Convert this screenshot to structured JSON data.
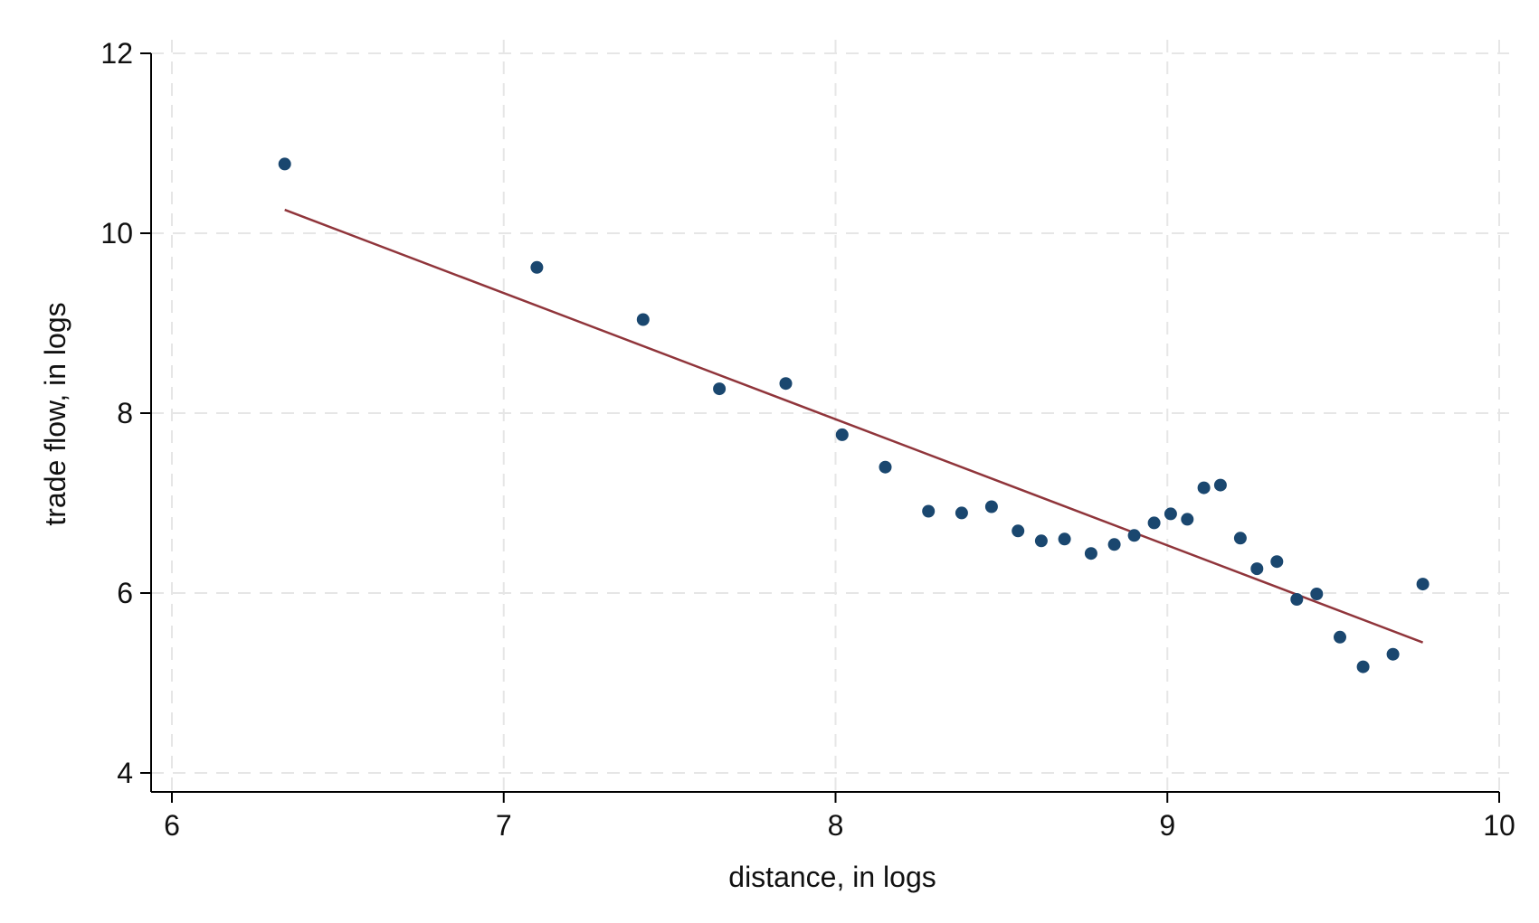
{
  "chart_data": {
    "type": "scatter",
    "title": "",
    "xlabel": "distance, in logs",
    "ylabel": "trade flow, in logs",
    "xlim": [
      6,
      10
    ],
    "ylim": [
      4,
      12
    ],
    "x_ticks": [
      "6",
      "7",
      "8",
      "9",
      "10"
    ],
    "y_ticks": [
      "4",
      "6",
      "8",
      "10",
      "12"
    ],
    "grid": true,
    "legend": "none",
    "colors": {
      "points": "#1a476f",
      "fit_line": "#90353b",
      "grid": "#e6e6e6",
      "axis": "#000000"
    },
    "series": [
      {
        "type": "scatter",
        "x": [
          6.34,
          7.1,
          7.42,
          7.65,
          7.85,
          8.02,
          8.15,
          8.28,
          8.38,
          8.47,
          8.55,
          8.62,
          8.69,
          8.77,
          8.84,
          8.9,
          8.96,
          9.01,
          9.06,
          9.11,
          9.16,
          9.22,
          9.27,
          9.33,
          9.39,
          9.45,
          9.52,
          9.59,
          9.68,
          9.77
        ],
        "y": [
          10.77,
          9.62,
          9.04,
          8.27,
          8.33,
          7.76,
          7.4,
          6.91,
          6.89,
          6.96,
          6.69,
          6.58,
          6.6,
          6.44,
          6.54,
          6.64,
          6.78,
          6.88,
          6.82,
          7.17,
          7.2,
          6.61,
          6.27,
          6.35,
          5.93,
          5.99,
          5.51,
          5.18,
          5.32,
          6.1
        ]
      },
      {
        "type": "line",
        "x": [
          6.34,
          9.77
        ],
        "y": [
          10.26,
          5.45
        ]
      }
    ]
  }
}
